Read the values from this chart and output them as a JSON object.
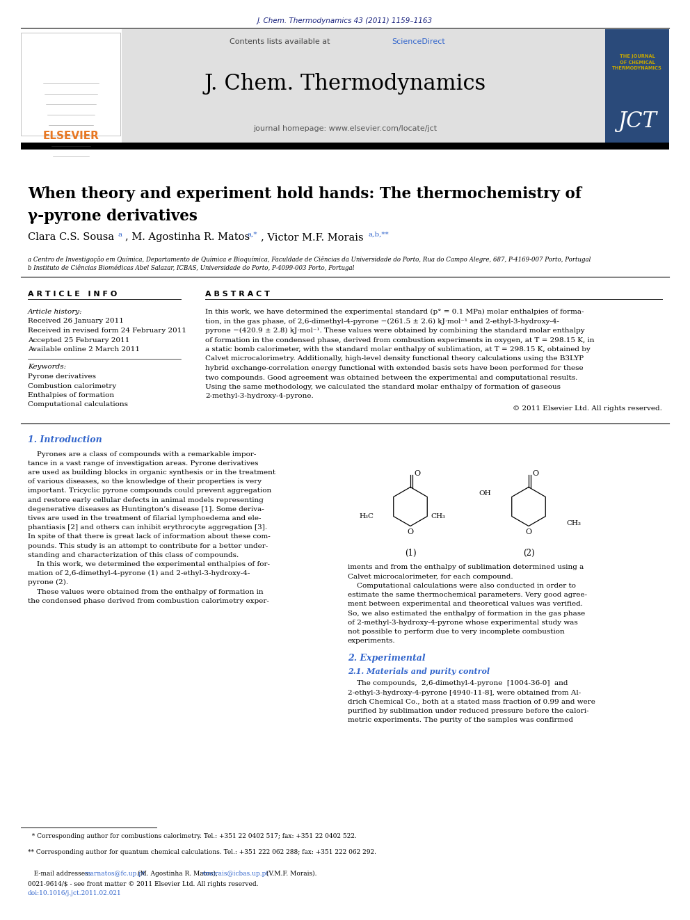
{
  "journal_ref": "J. Chem. Thermodynamics 43 (2011) 1159–1163",
  "contents_line": "Contents lists available at ",
  "sciencedirect_text": "ScienceDirect",
  "sciencedirect_color": "#3366cc",
  "journal_name": "J. Chem. Thermodynamics",
  "journal_homepage": "journal homepage: www.elsevier.com/locate/jct",
  "elsevier_color": "#e87722",
  "title_line1": "When theory and experiment hold hands: The thermochemistry of",
  "title_line2": "γ-pyrone derivatives",
  "author_main": "Clara C.S. Sousa",
  "author_sup1": "a",
  "author_mid": ", M. Agostinha R. Matos",
  "author_sup2": "a,*",
  "author_end": ", Victor M.F. Morais",
  "author_sup3": "a,b,**",
  "affil1": "a Centro de Investigação em Química, Departamento de Química e Bioquímica, Faculdade de Ciências da Universidade do Porto, Rua do Campo Alegre, 687, P-4169-007 Porto, Portugal",
  "affil2": "b Instituto de Ciências Biomédicas Abel Salazar, ICBAS, Universidade do Porto, P-4099-003 Porto, Portugal",
  "article_info_header": "A R T I C L E   I N F O",
  "abstract_header": "A B S T R A C T",
  "article_history_label": "Article history:",
  "received": "Received 26 January 2011",
  "received_revised": "Received in revised form 24 February 2011",
  "accepted": "Accepted 25 February 2011",
  "available": "Available online 2 March 2011",
  "keywords_label": "Keywords:",
  "kw1": "Pyrone derivatives",
  "kw2": "Combustion calorimetry",
  "kw3": "Enthalpies of formation",
  "kw4": "Computational calculations",
  "abstract_text_lines": [
    "In this work, we have determined the experimental standard (p° = 0.1 MPa) molar enthalpies of forma-",
    "tion, in the gas phase, of 2,6-dimethyl-4-pyrone −(261.5 ± 2.6) kJ·mol⁻¹ and 2-ethyl-3-hydroxy-4-",
    "pyrone −(420.9 ± 2.8) kJ·mol⁻¹. These values were obtained by combining the standard molar enthalpy",
    "of formation in the condensed phase, derived from combustion experiments in oxygen, at T = 298.15 K, in",
    "a static bomb calorimeter, with the standard molar enthalpy of sublimation, at T = 298.15 K, obtained by",
    "Calvet microcalorimetry. Additionally, high-level density functional theory calculations using the B3LYP",
    "hybrid exchange-correlation energy functional with extended basis sets have been performed for these",
    "two compounds. Good agreement was obtained between the experimental and computational results.",
    "Using the same methodology, we calculated the standard molar enthalpy of formation of gaseous",
    "2-methyl-3-hydroxy-4-pyrone."
  ],
  "copyright": "© 2011 Elsevier Ltd. All rights reserved.",
  "section1_header": "1. Introduction",
  "intro_lines": [
    "    Pyrones are a class of compounds with a remarkable impor-",
    "tance in a vast range of investigation areas. Pyrone derivatives",
    "are used as building blocks in organic synthesis or in the treatment",
    "of various diseases, so the knowledge of their properties is very",
    "important. Tricyclic pyrone compounds could prevent aggregation",
    "and restore early cellular defects in animal models representing",
    "degenerative diseases as Huntington’s disease [1]. Some deriva-",
    "tives are used in the treatment of filarial lymphoedema and ele-",
    "phantiasis [2] and others can inhibit erythrocyte aggregation [3].",
    "In spite of that there is great lack of information about these com-",
    "pounds. This study is an attempt to contribute for a better under-",
    "standing and characterization of this class of compounds.",
    "    In this work, we determined the experimental enthalpies of for-",
    "mation of 2,6-dimethyl-4-pyrone (1) and 2-ethyl-3-hydroxy-4-",
    "pyrone (2).",
    "    These values were obtained from the enthalpy of formation in",
    "the condensed phase derived from combustion calorimetry exper-"
  ],
  "right_col_lines": [
    "iments and from the enthalpy of sublimation determined using a",
    "Calvet microcalorimeter, for each compound.",
    "    Computational calculations were also conducted in order to",
    "estimate the same thermochemical parameters. Very good agree-",
    "ment between experimental and theoretical values was verified.",
    "So, we also estimated the enthalpy of formation in the gas phase",
    "of 2-methyl-3-hydroxy-4-pyrone whose experimental study was",
    "not possible to perform due to very incomplete combustion",
    "experiments."
  ],
  "section2_header": "2. Experimental",
  "section21_header": "2.1. Materials and purity control",
  "exp_lines": [
    "    The compounds,  2,6-dimethyl-4-pyrone  [1004-36-0]  and",
    "2-ethyl-3-hydroxy-4-pyrone [4940-11-8], were obtained from Al-",
    "drich Chemical Co., both at a stated mass fraction of 0.99 and were",
    "purified by sublimation under reduced pressure before the calori-",
    "metric experiments. The purity of the samples was confirmed"
  ],
  "footnote1": "  * Corresponding author for combustions calorimetry. Tel.: +351 22 0402 517; fax: +351 22 0402 522.",
  "footnote2": "** Corresponding author for quantum chemical calculations. Tel.: +351 222 062 288; fax: +351 222 062 292.",
  "footnote3_a": "   E-mail addresses: ",
  "footnote3_b": "marnatos@fc.up.pt",
  "footnote3_c": " (M. Agostinha R. Matos), ",
  "footnote3_d": "vmorais@icbas.up.pt",
  "footnote3_e": " (V.M.F. Morais).",
  "bottom_ref1": "0021-9614/$ - see front matter © 2011 Elsevier Ltd. All rights reserved.",
  "bottom_ref2": "doi:10.1016/j.jct.2011.02.021",
  "header_color": "#1a237e",
  "bg_header_color": "#e0e0e0",
  "jct_bg": "#2a4a7a",
  "jct_gold": "#c8a800",
  "link_color": "#3366cc",
  "orange": "#e87722",
  "black": "#111111"
}
